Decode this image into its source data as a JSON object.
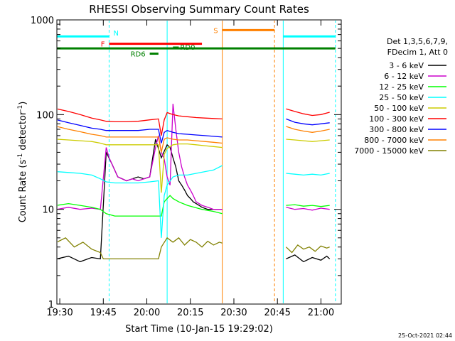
{
  "chart_data": {
    "type": "line",
    "title": "RHESSI Observing Summary Count Rates",
    "xlabel": "Start Time (10-Jan-15 19:29:02)",
    "ylabel": "Count Rate (s",
    "ylabel_sup": "-1",
    "ylabel_tail": " detector",
    "ylabel_close": ")",
    "x_unit": "minutes after 19:29:02",
    "xlim": [
      0,
      98
    ],
    "ylim": [
      1,
      1000
    ],
    "y_scale": "log",
    "x_ticks": [
      {
        "value": 1,
        "label": "19:30"
      },
      {
        "value": 16,
        "label": "19:45"
      },
      {
        "value": 31,
        "label": "20:00"
      },
      {
        "value": 46,
        "label": "20:15"
      },
      {
        "value": 61,
        "label": "20:30"
      },
      {
        "value": 76,
        "label": "20:45"
      },
      {
        "value": 91,
        "label": "21:00"
      }
    ],
    "y_ticks": [
      {
        "value": 1,
        "label": "1"
      },
      {
        "value": 10,
        "label": "10"
      },
      {
        "value": 100,
        "label": "100"
      },
      {
        "value": 1000,
        "label": "1000"
      }
    ],
    "legend_header": [
      "Det 1,3,5,6,7,9,",
      "FDecim 1, Att 0"
    ],
    "legend_position": "right",
    "grid": false,
    "series": [
      {
        "name": "3 - 6 keV",
        "color": "#000000",
        "segments": [
          {
            "x": [
              0,
              4,
              8,
              12,
              15,
              17,
              19,
              21,
              24,
              26,
              28,
              30,
              32,
              34,
              36,
              38,
              39,
              40,
              41,
              42,
              43,
              44,
              45,
              46,
              47,
              48,
              49,
              50,
              52,
              53,
              54,
              55,
              56,
              57
            ],
            "y": [
              3,
              3.2,
              2.8,
              3.1,
              3,
              40,
              30,
              22,
              20,
              21,
              22,
              21,
              22,
              55,
              35,
              48,
              45,
              35,
              28,
              20,
              18,
              16,
              14,
              13,
              12,
              11.5,
              11,
              10.5,
              10,
              10,
              10,
              10,
              10,
              10
            ]
          },
          {
            "x": [
              79,
              82,
              85,
              88,
              91,
              93,
              94
            ],
            "y": [
              3,
              3.3,
              2.8,
              3.1,
              2.9,
              3.2,
              3
            ]
          }
        ]
      },
      {
        "name": "6 - 12 keV",
        "color": "#cc00cc",
        "segments": [
          {
            "x": [
              0,
              4,
              8,
              12,
              15,
              17,
              18,
              19,
              21,
              24,
              26,
              28,
              30,
              32,
              34,
              35,
              36,
              37,
              38,
              39,
              40,
              41,
              42,
              43,
              44,
              45,
              46,
              47,
              48,
              49,
              50,
              52,
              54,
              57
            ],
            "y": [
              10,
              10.5,
              10,
              10.3,
              10,
              45,
              35,
              30,
              22,
              20,
              21,
              20,
              21,
              22,
              45,
              60,
              40,
              34,
              22,
              18,
              130,
              70,
              40,
              28,
              22,
              18,
              16,
              14,
              12,
              11.5,
              11,
              10.5,
              10,
              10
            ]
          },
          {
            "x": [
              79,
              82,
              85,
              88,
              91,
              94
            ],
            "y": [
              10.5,
              10,
              10.2,
              9.8,
              10.3,
              10
            ]
          }
        ]
      },
      {
        "name": "12 - 25 keV",
        "color": "#00ff00",
        "segments": [
          {
            "x": [
              0,
              4,
              8,
              12,
              15,
              17,
              20,
              24,
              28,
              32,
              35,
              36,
              37,
              38,
              39,
              40,
              42,
              45,
              50,
              54,
              57
            ],
            "y": [
              11,
              11.5,
              11,
              10.5,
              10,
              9,
              8.5,
              8.5,
              8.5,
              8.5,
              8.5,
              8.5,
              12,
              13,
              14,
              13,
              12,
              11,
              10,
              9.5,
              9
            ]
          },
          {
            "x": [
              79,
              82,
              85,
              88,
              91,
              94
            ],
            "y": [
              11,
              11.2,
              10.8,
              11,
              10.7,
              11
            ]
          }
        ]
      },
      {
        "name": "25 - 50 keV",
        "color": "#00ffff",
        "segments": [
          {
            "x": [
              0,
              4,
              8,
              12,
              15,
              17,
              20,
              24,
              28,
              32,
              35,
              36,
              37,
              38,
              40,
              42,
              45,
              48,
              51,
              54,
              57
            ],
            "y": [
              25,
              24.5,
              24,
              23,
              21,
              19.5,
              19,
              19,
              19,
              19.5,
              20,
              5,
              14,
              18,
              22,
              23,
              23,
              24,
              25,
              26,
              29
            ]
          },
          {
            "x": [
              79,
              82,
              85,
              88,
              91,
              94
            ],
            "y": [
              24,
              23.5,
              23,
              23.5,
              23,
              24
            ]
          }
        ]
      },
      {
        "name": "50 - 100 keV",
        "color": "#cccc00",
        "segments": [
          {
            "x": [
              0,
              4,
              8,
              12,
              15,
              17,
              20,
              24,
              28,
              32,
              35,
              36,
              37,
              38,
              40,
              42,
              45,
              48,
              51,
              54,
              57
            ],
            "y": [
              55,
              54,
              53,
              52,
              50,
              48,
              48,
              48,
              48,
              48,
              48,
              15,
              38,
              44,
              48,
              49,
              49,
              48,
              47,
              46,
              45
            ]
          },
          {
            "x": [
              79,
              82,
              85,
              88,
              91,
              94
            ],
            "y": [
              55,
              54,
              53,
              52,
              53,
              54
            ]
          }
        ]
      },
      {
        "name": "100 - 300 keV",
        "color": "#ff0000",
        "segments": [
          {
            "x": [
              0,
              4,
              8,
              12,
              15,
              17,
              20,
              24,
              28,
              32,
              35,
              36,
              37,
              38,
              40,
              42,
              45,
              48,
              51,
              54,
              57
            ],
            "y": [
              115,
              108,
              100,
              92,
              88,
              85,
              84,
              84,
              85,
              88,
              90,
              60,
              88,
              105,
              100,
              97,
              95,
              93,
              92,
              91,
              90
            ]
          },
          {
            "x": [
              79,
              82,
              85,
              88,
              91,
              94
            ],
            "y": [
              115,
              108,
              102,
              98,
              100,
              106
            ]
          }
        ]
      },
      {
        "name": "300 - 800 keV",
        "color": "#0000ff",
        "segments": [
          {
            "x": [
              0,
              4,
              8,
              12,
              15,
              17,
              20,
              24,
              28,
              32,
              35,
              36,
              37,
              38,
              40,
              42,
              45,
              48,
              51,
              54,
              57
            ],
            "y": [
              88,
              82,
              77,
              72,
              70,
              68,
              68,
              68,
              68,
              70,
              70,
              50,
              65,
              68,
              65,
              63,
              62,
              61,
              60,
              59,
              58
            ]
          },
          {
            "x": [
              79,
              82,
              85,
              88,
              91,
              94
            ],
            "y": [
              90,
              83,
              80,
              78,
              80,
              82
            ]
          }
        ]
      },
      {
        "name": "800 - 7000 keV",
        "color": "#ff8000",
        "segments": [
          {
            "x": [
              0,
              4,
              8,
              12,
              15,
              17,
              20,
              24,
              28,
              32,
              35,
              36,
              37,
              38,
              40,
              42,
              45,
              48,
              51,
              54,
              57
            ],
            "y": [
              75,
              70,
              66,
              62,
              60,
              58,
              58,
              58,
              58,
              58,
              58,
              40,
              55,
              57,
              55,
              54,
              54,
              53,
              52,
              51,
              50
            ]
          },
          {
            "x": [
              79,
              82,
              85,
              88,
              91,
              94
            ],
            "y": [
              75,
              70,
              67,
              65,
              67,
              70
            ]
          }
        ]
      },
      {
        "name": "7000 - 15000 keV",
        "color": "#808000",
        "segments": [
          {
            "x": [
              0,
              3,
              6,
              9,
              12,
              15,
              16,
              18,
              20,
              22,
              24,
              26,
              28,
              30,
              32,
              34,
              35,
              36,
              38,
              40,
              42,
              44,
              46,
              48,
              50,
              52,
              54,
              56,
              57
            ],
            "y": [
              4.5,
              5,
              4,
              4.5,
              3.8,
              3.5,
              3,
              3,
              3,
              3,
              3,
              3,
              3,
              3,
              3,
              3,
              3,
              4,
              5,
              4.5,
              5,
              4.2,
              4.8,
              4.5,
              4,
              4.6,
              4.2,
              4.5,
              4.4
            ]
          },
          {
            "x": [
              79,
              81,
              83,
              85,
              87,
              89,
              91,
              93,
              94
            ],
            "y": [
              4,
              3.5,
              4.2,
              3.8,
              4,
              3.6,
              4.1,
              3.9,
              4
            ]
          }
        ]
      }
    ],
    "flags": [
      {
        "label": "N",
        "color": "#00ffff",
        "y": 670,
        "x_start": 0,
        "x_end": 18
      },
      {
        "label": "F",
        "color": "#ff0000",
        "y": 560,
        "x_start": 18,
        "x_end": 50
      },
      {
        "label": "RD0",
        "color": "#008000",
        "y": 510,
        "x_start": 40,
        "x_end": 42
      },
      {
        "label": "RD6",
        "color": "#008000",
        "y": 440,
        "x_start": 32,
        "x_end": 35
      },
      {
        "label": "S",
        "color": "#ff8000",
        "y": 780,
        "x_start": 57,
        "x_end": 75
      },
      {
        "label": "",
        "color": "#00ffff",
        "y": 670,
        "x_start": 78,
        "x_end": 96
      },
      {
        "label": "",
        "color": "#008000",
        "y": 500,
        "x_start": 0,
        "x_end": 96
      }
    ],
    "markers": [
      {
        "x": 18,
        "color": "#00ffff",
        "style": "dashed"
      },
      {
        "x": 38,
        "color": "#00ffff",
        "style": "solid"
      },
      {
        "x": 57,
        "color": "#ff8000",
        "style": "solid"
      },
      {
        "x": 75,
        "color": "#ff8000",
        "style": "dashed"
      },
      {
        "x": 78,
        "color": "#00ffff",
        "style": "solid"
      },
      {
        "x": 96,
        "color": "#00ffff",
        "style": "dashed"
      }
    ]
  },
  "footer_timestamp": "25-Oct-2021 02:44"
}
